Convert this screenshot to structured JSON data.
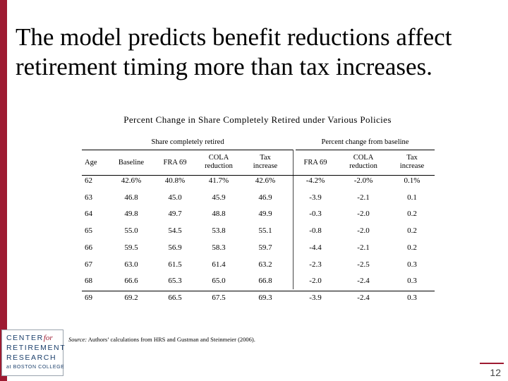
{
  "slide": {
    "title": "The model predicts benefit reductions affect retirement timing more than tax increases.",
    "subtitle": "Percent Change in Share Completely Retired under Various Policies",
    "page_number": "12",
    "accent_color": "#9e1b32"
  },
  "table": {
    "group_headers": {
      "share": "Share completely retired",
      "pct": "Percent change from baseline"
    },
    "columns": {
      "age": "Age",
      "baseline": "Baseline",
      "fra69": "FRA 69",
      "cola_1": "COLA",
      "cola_2": "reduction",
      "tax_1": "Tax",
      "tax_2": "increase",
      "pct_fra69": "FRA 69",
      "pct_cola_1": "COLA",
      "pct_cola_2": "reduction",
      "pct_tax_1": "Tax",
      "pct_tax_2": "increase"
    },
    "rows": [
      {
        "age": "62",
        "baseline": "42.6%",
        "fra69": "40.8%",
        "cola": "41.7%",
        "tax": "42.6%",
        "pct_fra69": "-4.2%",
        "pct_cola": "-2.0%",
        "pct_tax": "0.1%"
      },
      {
        "age": "63",
        "baseline": "46.8",
        "fra69": "45.0",
        "cola": "45.9",
        "tax": "46.9",
        "pct_fra69": "-3.9",
        "pct_cola": "-2.1",
        "pct_tax": "0.1"
      },
      {
        "age": "64",
        "baseline": "49.8",
        "fra69": "49.7",
        "cola": "48.8",
        "tax": "49.9",
        "pct_fra69": "-0.3",
        "pct_cola": "-2.0",
        "pct_tax": "0.2"
      },
      {
        "age": "65",
        "baseline": "55.0",
        "fra69": "54.5",
        "cola": "53.8",
        "tax": "55.1",
        "pct_fra69": "-0.8",
        "pct_cola": "-2.0",
        "pct_tax": "0.2"
      },
      {
        "age": "66",
        "baseline": "59.5",
        "fra69": "56.9",
        "cola": "58.3",
        "tax": "59.7",
        "pct_fra69": "-4.4",
        "pct_cola": "-2.1",
        "pct_tax": "0.2"
      },
      {
        "age": "67",
        "baseline": "63.0",
        "fra69": "61.5",
        "cola": "61.4",
        "tax": "63.2",
        "pct_fra69": "-2.3",
        "pct_cola": "-2.5",
        "pct_tax": "0.3"
      },
      {
        "age": "68",
        "baseline": "66.6",
        "fra69": "65.3",
        "cola": "65.0",
        "tax": "66.8",
        "pct_fra69": "-2.0",
        "pct_cola": "-2.4",
        "pct_tax": "0.3"
      },
      {
        "age": "69",
        "baseline": "69.2",
        "fra69": "66.5",
        "cola": "67.5",
        "tax": "69.3",
        "pct_fra69": "-3.9",
        "pct_cola": "-2.4",
        "pct_tax": "0.3"
      }
    ]
  },
  "source": {
    "label": "Source:",
    "text": " Authors’ calculations from HRS and Gustman and Steinmeier (2006)."
  },
  "logo": {
    "line1": "CENTER",
    "line1_for": "for",
    "line2": "RETIREMENT",
    "line3": "RESEARCH",
    "line4": "at BOSTON COLLEGE"
  }
}
